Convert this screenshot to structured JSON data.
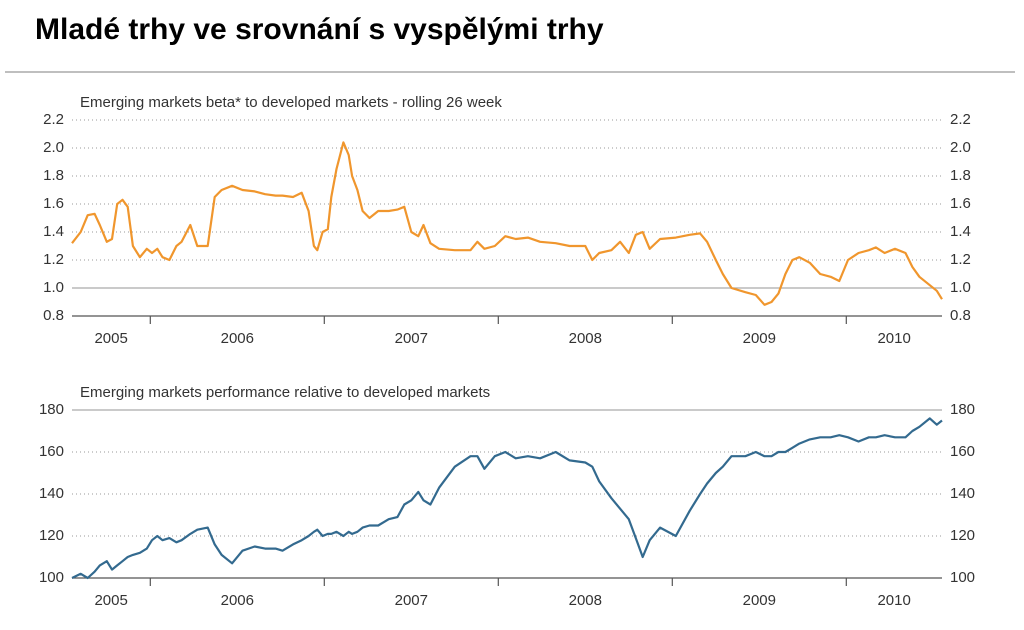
{
  "title": "Mladé trhy ve srovnání s vyspělými trhy",
  "chart_data": [
    {
      "type": "line",
      "title": "Emerging markets beta* to developed markets - rolling 26 week",
      "x": [
        2005.55,
        2005.6,
        2005.64,
        2005.68,
        2005.71,
        2005.75,
        2005.78,
        2005.81,
        2005.84,
        2005.87,
        2005.9,
        2005.94,
        2005.98,
        2006.01,
        2006.04,
        2006.07,
        2006.11,
        2006.15,
        2006.18,
        2006.23,
        2006.27,
        2006.33,
        2006.37,
        2006.41,
        2006.47,
        2006.53,
        2006.6,
        2006.66,
        2006.72,
        2006.76,
        2006.82,
        2006.87,
        2006.91,
        2006.94,
        2006.96,
        2006.99,
        2007.02,
        2007.04,
        2007.07,
        2007.11,
        2007.14,
        2007.16,
        2007.19,
        2007.22,
        2007.26,
        2007.31,
        2007.37,
        2007.42,
        2007.46,
        2007.5,
        2007.54,
        2007.57,
        2007.61,
        2007.66,
        2007.75,
        2007.84,
        2007.88,
        2007.92,
        2007.98,
        2008.04,
        2008.1,
        2008.17,
        2008.24,
        2008.33,
        2008.41,
        2008.5,
        2008.54,
        2008.58,
        2008.65,
        2008.7,
        2008.75,
        2008.79,
        2008.83,
        2008.87,
        2008.93,
        2009.02,
        2009.1,
        2009.16,
        2009.2,
        2009.25,
        2009.29,
        2009.34,
        2009.42,
        2009.48,
        2009.53,
        2009.57,
        2009.61,
        2009.65,
        2009.69,
        2009.73,
        2009.79,
        2009.85,
        2009.91,
        2009.96,
        2010.01,
        2010.07,
        2010.13,
        2010.17,
        2010.22,
        2010.28,
        2010.34,
        2010.38,
        2010.42,
        2010.48,
        2010.52,
        2010.55
      ],
      "values": [
        1.32,
        1.4,
        1.52,
        1.53,
        1.45,
        1.33,
        1.35,
        1.6,
        1.63,
        1.58,
        1.3,
        1.22,
        1.28,
        1.25,
        1.28,
        1.22,
        1.2,
        1.3,
        1.33,
        1.45,
        1.3,
        1.3,
        1.65,
        1.7,
        1.73,
        1.7,
        1.69,
        1.67,
        1.66,
        1.66,
        1.65,
        1.68,
        1.55,
        1.3,
        1.27,
        1.4,
        1.42,
        1.65,
        1.85,
        2.04,
        1.95,
        1.8,
        1.7,
        1.55,
        1.5,
        1.55,
        1.55,
        1.56,
        1.58,
        1.4,
        1.37,
        1.45,
        1.32,
        1.28,
        1.27,
        1.27,
        1.33,
        1.28,
        1.3,
        1.37,
        1.35,
        1.36,
        1.33,
        1.32,
        1.3,
        1.3,
        1.2,
        1.25,
        1.27,
        1.33,
        1.25,
        1.38,
        1.4,
        1.28,
        1.35,
        1.36,
        1.38,
        1.39,
        1.33,
        1.2,
        1.1,
        1.0,
        0.97,
        0.95,
        0.88,
        0.9,
        0.96,
        1.1,
        1.2,
        1.22,
        1.18,
        1.1,
        1.08,
        1.05,
        1.2,
        1.25,
        1.27,
        1.29,
        1.25,
        1.28,
        1.25,
        1.15,
        1.08,
        1.02,
        0.98,
        0.92
      ],
      "color": "#f0962d",
      "xlim": [
        2005.55,
        2010.55
      ],
      "xticks": [
        2006,
        2007,
        2008,
        2009,
        2010
      ],
      "year_labels": [
        2005,
        2006,
        2007,
        2008,
        2009,
        2010
      ],
      "ylim": [
        0.8,
        2.2
      ],
      "yticks": [
        0.8,
        {
          "value": 1,
          "label": "1.0"
        },
        1.2,
        1.4,
        1.6,
        1.8,
        {
          "value": 2,
          "label": "2.0"
        },
        2.2
      ],
      "baseline": 1,
      "grid": true
    },
    {
      "type": "line",
      "title": "Emerging markets performance relative to developed markets",
      "x": [
        2005.55,
        2005.6,
        2005.64,
        2005.68,
        2005.71,
        2005.75,
        2005.78,
        2005.81,
        2005.84,
        2005.87,
        2005.9,
        2005.94,
        2005.98,
        2006.01,
        2006.04,
        2006.07,
        2006.11,
        2006.15,
        2006.18,
        2006.23,
        2006.27,
        2006.33,
        2006.37,
        2006.41,
        2006.47,
        2006.53,
        2006.6,
        2006.66,
        2006.72,
        2006.76,
        2006.82,
        2006.87,
        2006.91,
        2006.94,
        2006.96,
        2006.99,
        2007.02,
        2007.04,
        2007.07,
        2007.11,
        2007.14,
        2007.16,
        2007.19,
        2007.22,
        2007.26,
        2007.31,
        2007.37,
        2007.42,
        2007.46,
        2007.5,
        2007.54,
        2007.57,
        2007.61,
        2007.66,
        2007.75,
        2007.84,
        2007.88,
        2007.92,
        2007.98,
        2008.04,
        2008.1,
        2008.17,
        2008.24,
        2008.33,
        2008.41,
        2008.5,
        2008.54,
        2008.58,
        2008.65,
        2008.7,
        2008.75,
        2008.79,
        2008.83,
        2008.87,
        2008.93,
        2009.02,
        2009.1,
        2009.16,
        2009.2,
        2009.25,
        2009.29,
        2009.34,
        2009.42,
        2009.48,
        2009.53,
        2009.57,
        2009.61,
        2009.65,
        2009.69,
        2009.73,
        2009.79,
        2009.85,
        2009.91,
        2009.96,
        2010.01,
        2010.07,
        2010.13,
        2010.17,
        2010.22,
        2010.28,
        2010.34,
        2010.38,
        2010.42,
        2010.48,
        2010.52,
        2010.55
      ],
      "values": [
        100,
        102,
        100,
        103,
        106,
        108,
        104,
        106,
        108,
        110,
        111,
        112,
        114,
        118,
        120,
        118,
        119,
        117,
        118,
        121,
        123,
        124,
        116,
        111,
        107,
        113,
        115,
        114,
        114,
        113,
        116,
        118,
        120,
        122,
        123,
        120,
        121,
        121,
        122,
        120,
        122,
        121,
        122,
        124,
        125,
        125,
        128,
        129,
        135,
        137,
        141,
        137,
        135,
        143,
        153,
        158,
        158,
        152,
        158,
        160,
        157,
        158,
        157,
        160,
        156,
        155,
        153,
        146,
        138,
        133,
        128,
        119,
        110,
        118,
        124,
        120,
        132,
        140,
        145,
        150,
        153,
        158,
        158,
        160,
        158,
        158,
        160,
        160,
        162,
        164,
        166,
        167,
        167,
        168,
        167,
        165,
        167,
        167,
        168,
        167,
        167,
        170,
        172,
        176,
        173,
        175
      ],
      "color": "#336a8f",
      "xlim": [
        2005.55,
        2010.55
      ],
      "xticks": [
        2006,
        2007,
        2008,
        2009,
        2010
      ],
      "year_labels": [
        2005,
        2006,
        2007,
        2008,
        2009,
        2010
      ],
      "ylim": [
        100,
        180
      ],
      "yticks": [
        100,
        120,
        140,
        160,
        180
      ],
      "baseline": 180,
      "grid": true
    }
  ]
}
